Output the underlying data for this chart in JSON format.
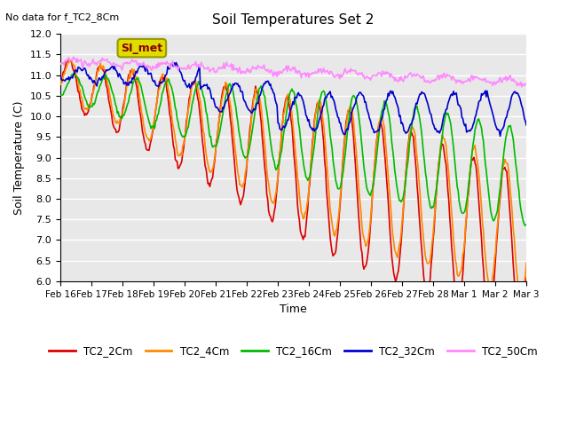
{
  "title": "Soil Temperatures Set 2",
  "subtitle": "No data for f_TC2_8Cm",
  "xlabel": "Time",
  "ylabel": "Soil Temperature (C)",
  "ylim": [
    6.0,
    12.0
  ],
  "yticks": [
    6.0,
    6.5,
    7.0,
    7.5,
    8.0,
    8.5,
    9.0,
    9.5,
    10.0,
    10.5,
    11.0,
    11.5,
    12.0
  ],
  "xtick_labels": [
    "Feb 16",
    "Feb 17",
    "Feb 18",
    "Feb 19",
    "Feb 20",
    "Feb 21",
    "Feb 22",
    "Feb 23",
    "Feb 24",
    "Feb 25",
    "Feb 26",
    "Feb 27",
    "Feb 28",
    "Mar 1",
    "Mar 2",
    "Mar 3"
  ],
  "series_colors": {
    "TC2_2Cm": "#dd0000",
    "TC2_4Cm": "#ff8800",
    "TC2_16Cm": "#00bb00",
    "TC2_32Cm": "#0000cc",
    "TC2_50Cm": "#ff88ff"
  },
  "legend_label": "SI_met",
  "legend_box_color": "#dddd00",
  "legend_box_text_color": "#880000",
  "plot_bg_color": "#e8e8e8",
  "grid_color": "#ffffff",
  "line_width": 1.2
}
